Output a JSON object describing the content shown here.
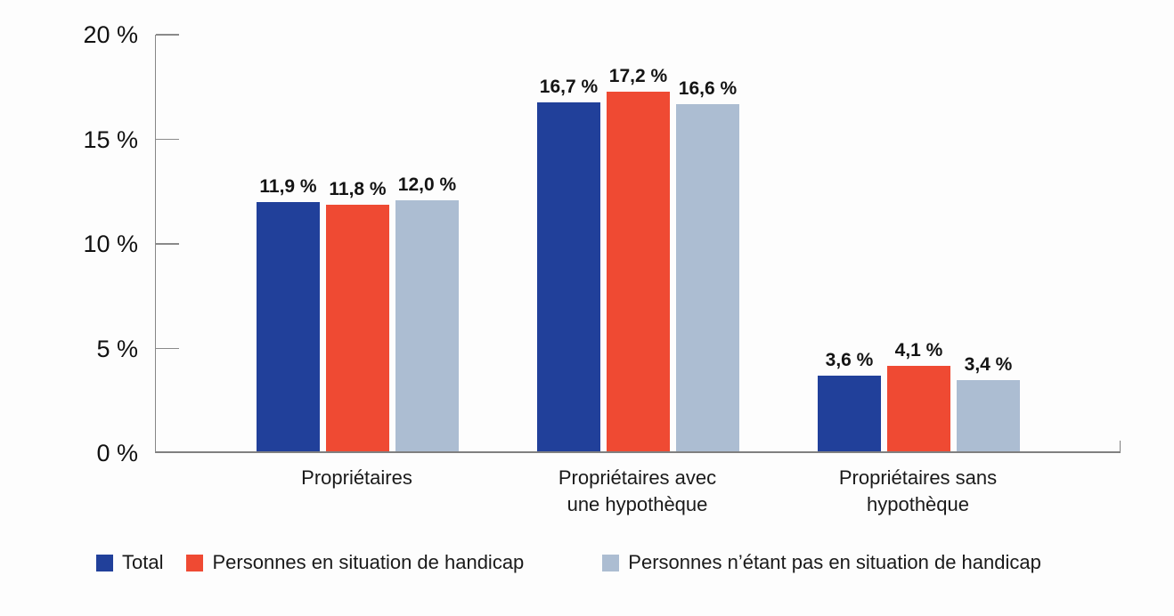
{
  "chart_data": {
    "type": "bar",
    "title": "",
    "categories": [
      [
        "Propriétaires"
      ],
      [
        "Propriétaires avec",
        "une hypothèque"
      ],
      [
        "Propriétaires sans",
        "hypothèque"
      ]
    ],
    "series": [
      {
        "name": "Total",
        "color": "#21409A",
        "values": [
          11.9,
          16.7,
          3.6
        ]
      },
      {
        "name": "Personnes en situation de handicap",
        "color": "#EF4A33",
        "values": [
          11.8,
          17.2,
          4.1
        ]
      },
      {
        "name": "Personnes n’étant pas en situation de handicap",
        "color": "#ACBDD2",
        "values": [
          12.0,
          16.6,
          3.4
        ]
      }
    ],
    "value_labels": [
      [
        "11,9 %",
        "11,8 %",
        "12,0 %"
      ],
      [
        "16,7 %",
        "17,2 %",
        "16,6 %"
      ],
      [
        "3,6 %",
        "4,1 %",
        "3,4 %"
      ]
    ],
    "y_axis": {
      "ticks": [
        {
          "label": "20 %",
          "value": 20
        },
        {
          "label": "15 %",
          "value": 15
        },
        {
          "label": "10 %",
          "value": 10
        },
        {
          "label": "5 %",
          "value": 5
        },
        {
          "label": "0 %",
          "value": 0
        }
      ],
      "ylim": [
        0,
        20
      ]
    },
    "grid": false,
    "legend_position": "bottom",
    "axis_color": "#808080"
  }
}
